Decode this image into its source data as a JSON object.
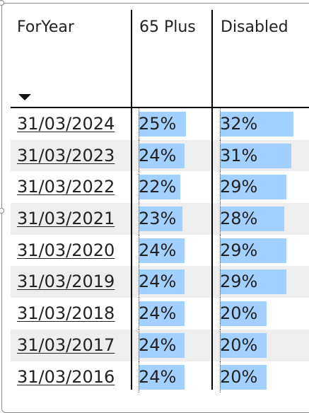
{
  "table": {
    "columns": {
      "year": "ForYear",
      "plus65": "65 Plus",
      "disabled": "Disabled"
    },
    "sort": "descending",
    "bar_color": "#a3d1ff",
    "rows": [
      {
        "year": "31/03/2024",
        "plus65": "25%",
        "disabled": "32%",
        "plus65_value": 25,
        "disabled_value": 32
      },
      {
        "year": "31/03/2023",
        "plus65": "24%",
        "disabled": "31%",
        "plus65_value": 24,
        "disabled_value": 31
      },
      {
        "year": "31/03/2022",
        "plus65": "22%",
        "disabled": "29%",
        "plus65_value": 22,
        "disabled_value": 29
      },
      {
        "year": "31/03/2021",
        "plus65": "23%",
        "disabled": "28%",
        "plus65_value": 23,
        "disabled_value": 28
      },
      {
        "year": "31/03/2020",
        "plus65": "24%",
        "disabled": "29%",
        "plus65_value": 24,
        "disabled_value": 29
      },
      {
        "year": "31/03/2019",
        "plus65": "24%",
        "disabled": "29%",
        "plus65_value": 24,
        "disabled_value": 29
      },
      {
        "year": "31/03/2018",
        "plus65": "24%",
        "disabled": "20%",
        "plus65_value": 24,
        "disabled_value": 20
      },
      {
        "year": "31/03/2017",
        "plus65": "24%",
        "disabled": "20%",
        "plus65_value": 24,
        "disabled_value": 20
      },
      {
        "year": "31/03/2016",
        "plus65": "24%",
        "disabled": "20%",
        "plus65_value": 24,
        "disabled_value": 20
      }
    ]
  }
}
